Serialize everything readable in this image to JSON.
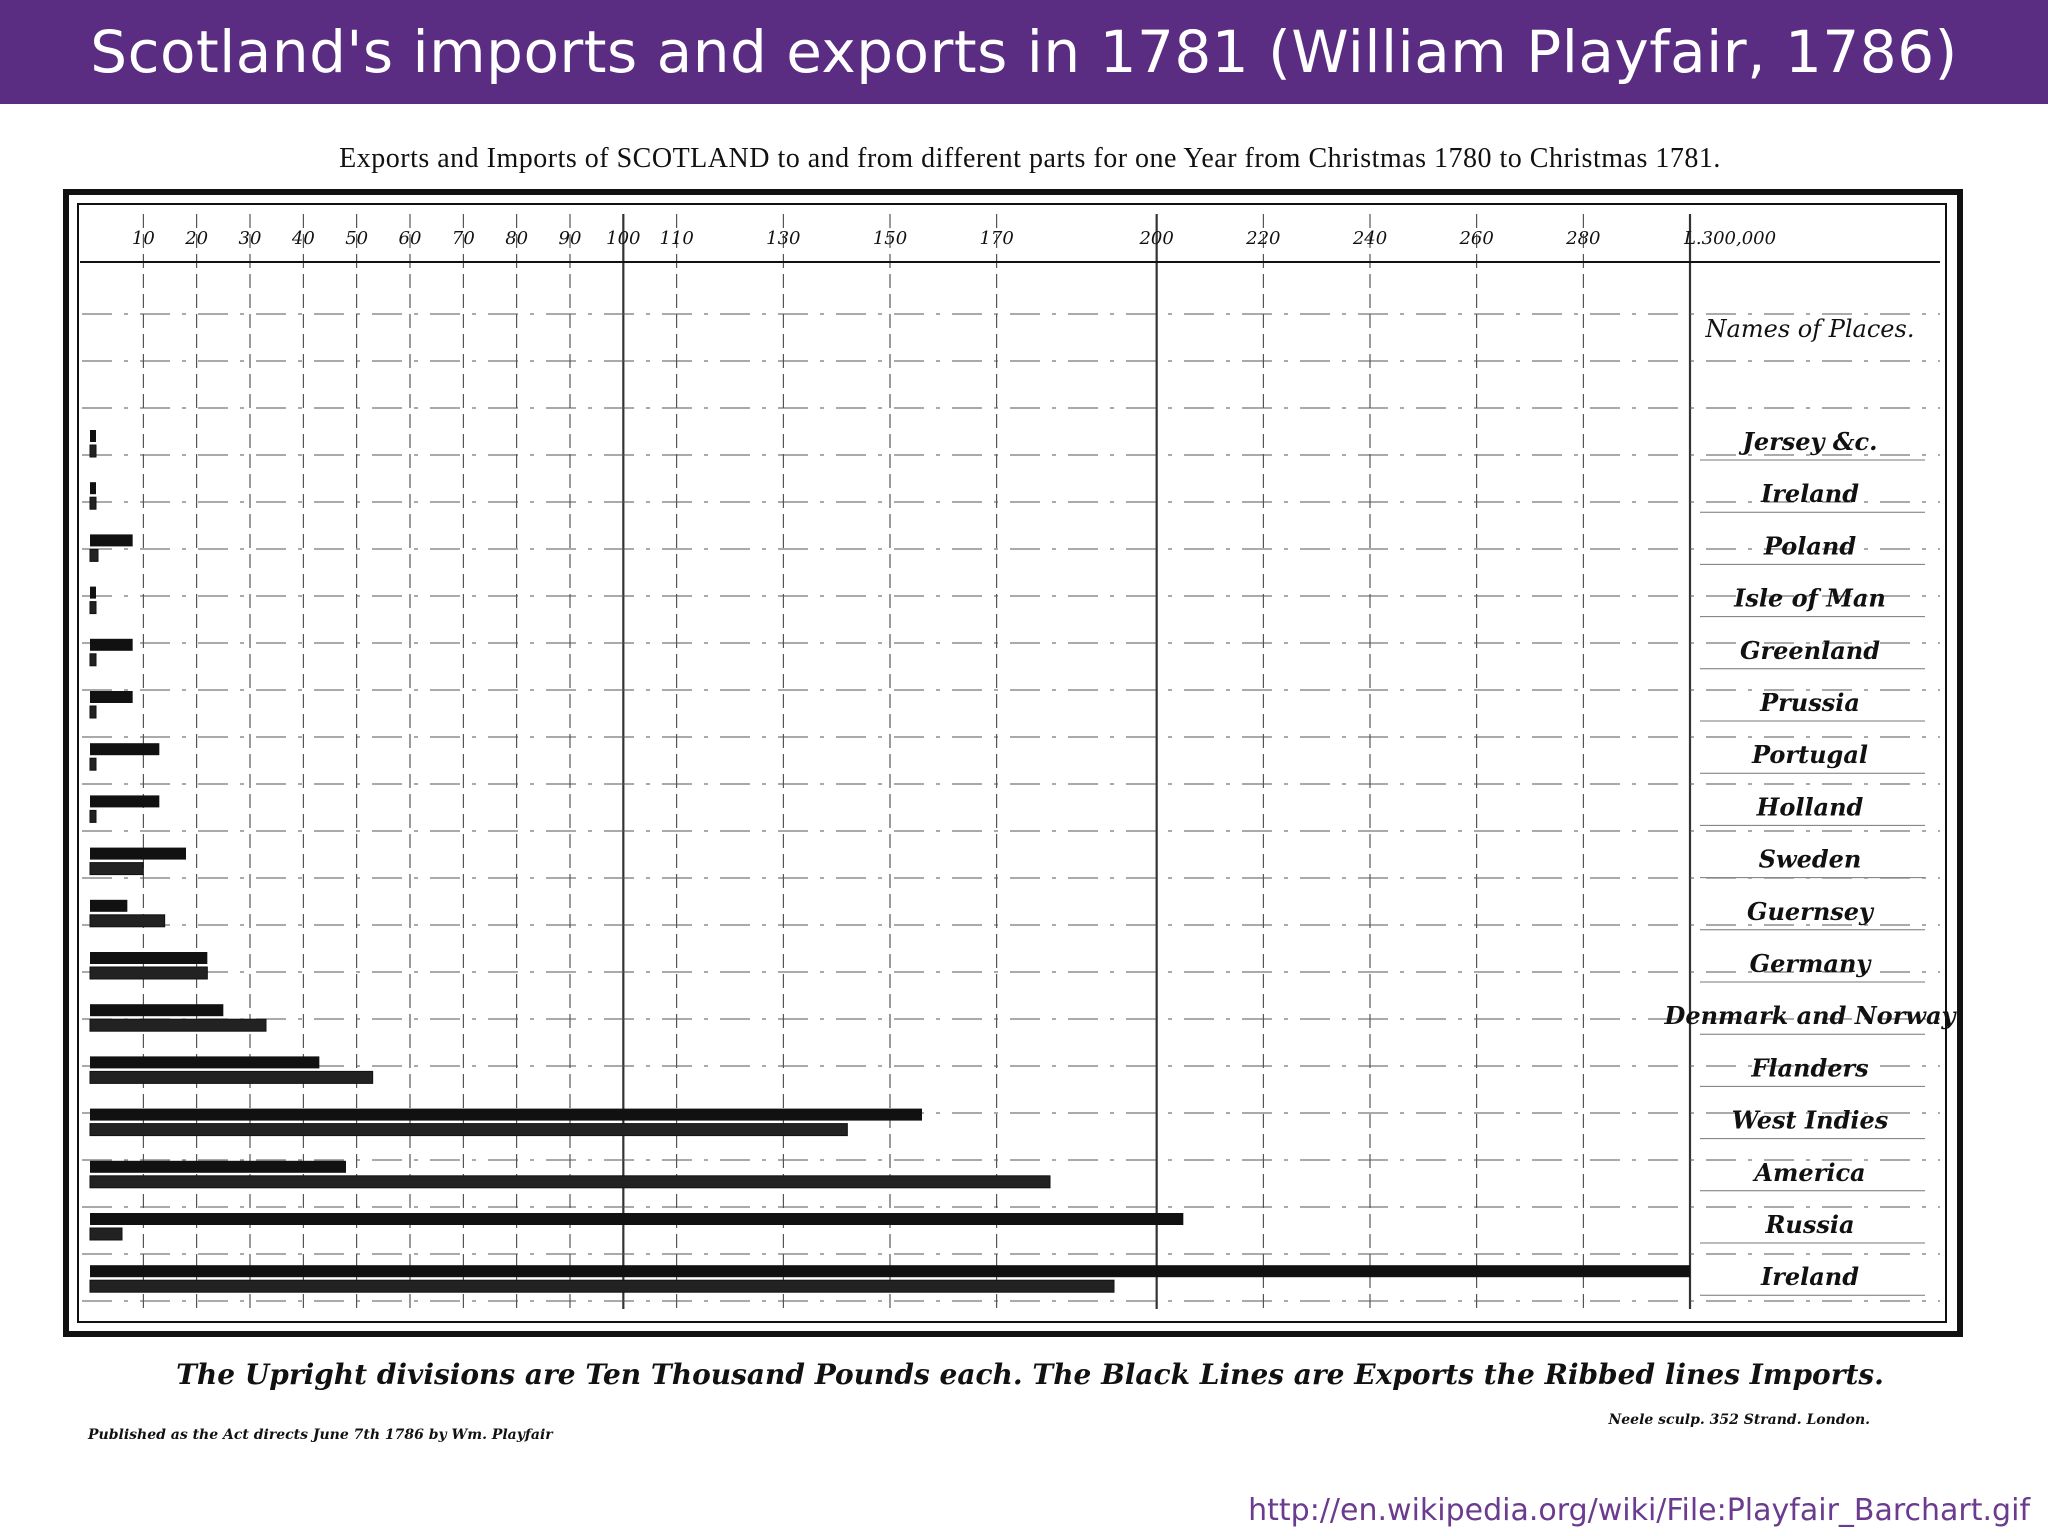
{
  "banner": {
    "title": "Scotland's imports and exports in 1781 (William Playfair, 1786)"
  },
  "source": {
    "url": "http://en.wikipedia.org/wiki/File:Playfair_Barchart.gif"
  },
  "colors": {
    "banner": "#5b2d82",
    "ink": "#111111",
    "paper": "#ffffff",
    "link": "#6a3b8e"
  },
  "chart_data": {
    "type": "bar",
    "orientation": "horizontal",
    "title": "Exports and Imports of SCOTLAND to and from different parts for one Year from Christmas 1780 to Christmas 1781.",
    "column_header": "Names of Places.",
    "x_tick_labels": [
      "10",
      "20",
      "30",
      "40",
      "50",
      "60",
      "70",
      "80",
      "90",
      "100",
      "110",
      "130",
      "150",
      "170",
      "200",
      "220",
      "240",
      "260",
      "280",
      "L.300,000"
    ],
    "x_ticks_thousands": [
      10,
      20,
      30,
      40,
      50,
      60,
      70,
      80,
      90,
      100,
      110,
      130,
      150,
      170,
      200,
      220,
      240,
      260,
      280,
      300
    ],
    "xlim": [
      0,
      300
    ],
    "units": "Thousands of pounds",
    "grid": true,
    "categories": [
      "Jersey &c.",
      "Ireland",
      "Poland",
      "Isle of Man",
      "Greenland",
      "Prussia",
      "Portugal",
      "Holland",
      "Sweden",
      "Guernsey",
      "Germany",
      "Denmark and Norway",
      "Flanders",
      "West Indies",
      "America",
      "Russia",
      "Ireland"
    ],
    "series": [
      {
        "name": "Exports",
        "values": [
          0.5,
          0.5,
          8,
          0.5,
          8,
          8,
          13,
          13,
          18,
          7,
          22,
          25,
          43,
          156,
          48,
          205,
          300
        ]
      },
      {
        "name": "Imports",
        "values": [
          0.2,
          0.5,
          1.5,
          1,
          0.2,
          1,
          0.5,
          0.5,
          10,
          14,
          22,
          33,
          53,
          142,
          180,
          6,
          192
        ]
      }
    ],
    "footnote": "The Upright divisions are Ten Thousand Pounds each. The Black Lines are Exports the Ribbed lines Imports.",
    "publisher_left": "Published as the Act directs June 7th 1786 by Wm. Playfair",
    "publisher_right": "Neele sculp. 352 Strand. London."
  }
}
